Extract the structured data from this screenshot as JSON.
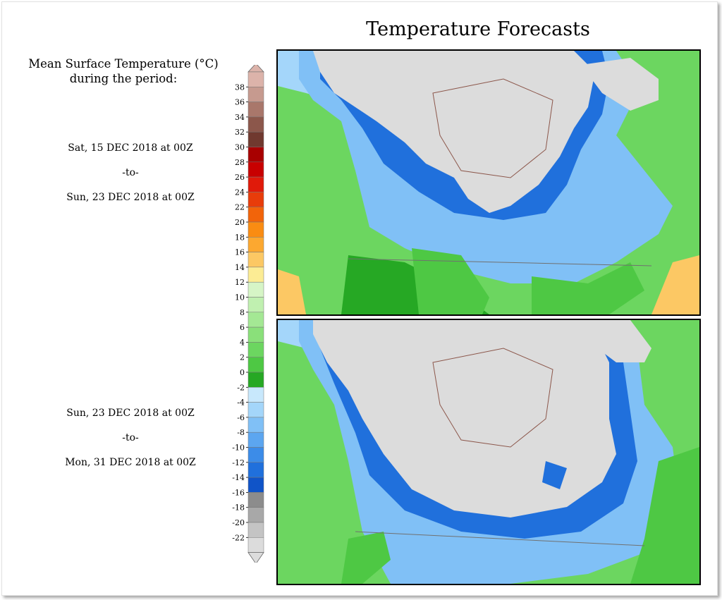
{
  "title": "Temperature Forecasts",
  "legend": {
    "title_line1": "Mean Surface Temperature (°C)",
    "title_line2": "during the period:",
    "ticks": [
      "38",
      "36",
      "34",
      "32",
      "30",
      "28",
      "26",
      "24",
      "22",
      "20",
      "18",
      "16",
      "14",
      "12",
      "10",
      "8",
      "6",
      "4",
      "2",
      "0",
      "-2",
      "-4",
      "-6",
      "-8",
      "-10",
      "-12",
      "-14",
      "-16",
      "-18",
      "-20",
      "-22"
    ],
    "colors": [
      "#dcb3aa",
      "#c69a8f",
      "#a9776b",
      "#8c574b",
      "#70392f",
      "#a80000",
      "#c80000",
      "#e01a0a",
      "#e83c0a",
      "#f2640a",
      "#fa8c12",
      "#fca830",
      "#fcc864",
      "#fcec94",
      "#d6f5c6",
      "#c0f0b0",
      "#a4e894",
      "#8ae07a",
      "#6cd660",
      "#4ec844",
      "#26a824",
      "#c8e8fc",
      "#a4d6fa",
      "#80c0f6",
      "#5ca6f0",
      "#3c8ce8",
      "#2070dc",
      "#1054c8",
      "#8c8c8c",
      "#a8a8a8",
      "#c4c4c4",
      "#dcdcdc"
    ]
  },
  "panels": [
    {
      "name": "map-top",
      "start": "Sat, 15 DEC 2018 at 00Z",
      "sep": "-to-",
      "end": "Sun, 23 DEC 2018 at 00Z"
    },
    {
      "name": "map-bottom",
      "start": "Sun, 23 DEC 2018 at 00Z",
      "sep": "-to-",
      "end": "Mon, 31 DEC 2018 at 00Z"
    }
  ]
}
